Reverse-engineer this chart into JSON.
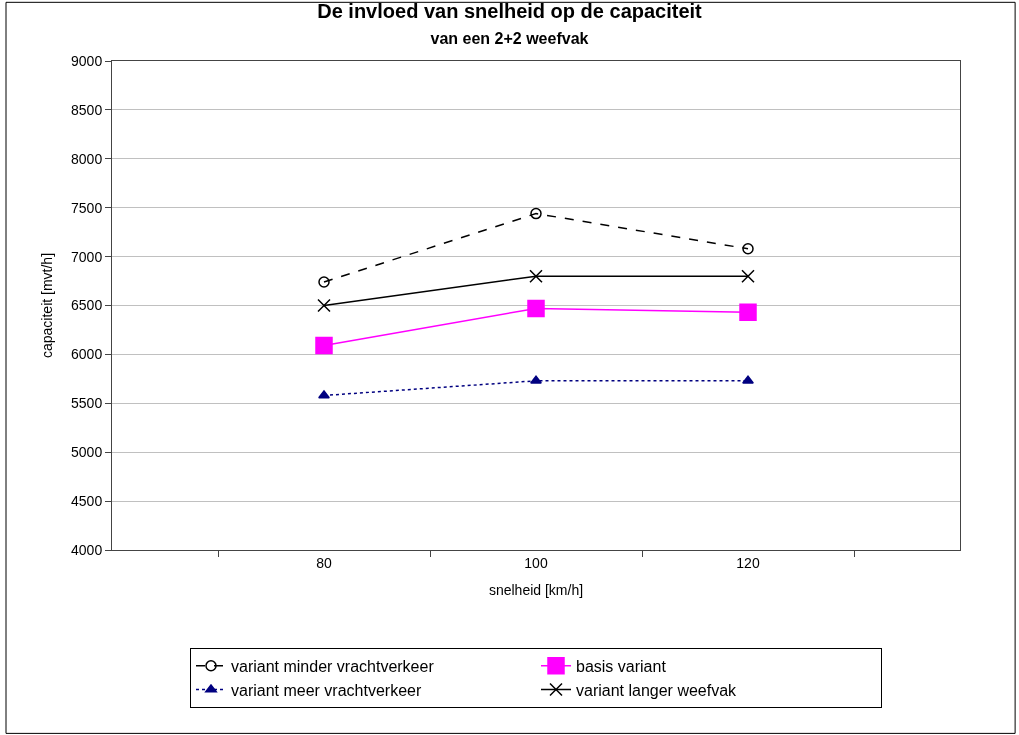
{
  "chart_data": {
    "type": "line",
    "title": "De invloed van snelheid op de capaciteit",
    "subtitle": "van een 2+2 weefvak",
    "xlabel": "snelheid [km/h]",
    "ylabel": "capaciteit [mvt/h]",
    "categories": [
      "80",
      "100",
      "120"
    ],
    "series": [
      {
        "name": "variant minder vrachtverkeer",
        "color": "#000000",
        "values": [
          6740,
          7440,
          7080
        ],
        "marker": "circle",
        "line_style": "dashed"
      },
      {
        "name": "basis variant",
        "color": "#ff00ff",
        "values": [
          6090,
          6470,
          6430
        ],
        "marker": "square",
        "line_style": "solid"
      },
      {
        "name": "variant meer vrachtverkeer",
        "color": "#000080",
        "values": [
          5580,
          5730,
          5730
        ],
        "marker": "triangle",
        "line_style": "dotted"
      },
      {
        "name": "variant langer weefvak",
        "color": "#000000",
        "values": [
          6500,
          6800,
          6800
        ],
        "marker": "cross",
        "line_style": "solid"
      }
    ],
    "ylim": [
      4000,
      9000
    ],
    "yticks": [
      4000,
      4500,
      5000,
      5500,
      6000,
      6500,
      7000,
      7500,
      8000,
      8500,
      9000
    ],
    "grid": "y",
    "legend": "bottom"
  }
}
